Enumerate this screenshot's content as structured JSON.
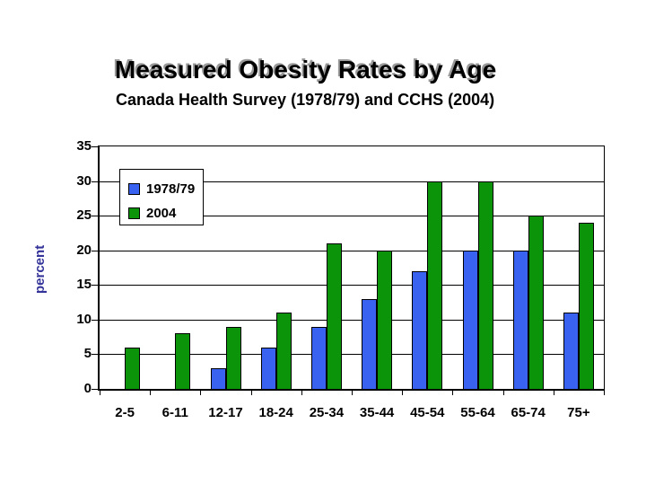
{
  "slide": {
    "title": "Measured Obesity Rates by Age",
    "subtitle": "Canada Health Survey (1978/79) and CCHS (2004)"
  },
  "chart_data": {
    "type": "bar",
    "title": "Measured Obesity Rates by Age",
    "subtitle": "Canada Health Survey (1978/79) and CCHS (2004)",
    "categories": [
      "2-5",
      "6-11",
      "12-17",
      "18-24",
      "25-34",
      "35-44",
      "45-54",
      "55-64",
      "65-74",
      "75+"
    ],
    "series": [
      {
        "name": "1978/79",
        "color": "#3A62F1",
        "values": [
          null,
          null,
          3,
          6,
          9,
          13,
          17,
          20,
          20,
          11
        ]
      },
      {
        "name": "2004",
        "color": "#0B9309",
        "values": [
          6,
          8,
          9,
          11,
          21,
          20,
          30,
          30,
          25,
          24
        ]
      }
    ],
    "xlabel": "",
    "ylabel": "percent",
    "ylabel_color": "#333399",
    "ylim": [
      0,
      35
    ],
    "ytick_interval": 5,
    "yticks": [
      0,
      5,
      10,
      15,
      20,
      25,
      30,
      35
    ],
    "grid": true,
    "legend_position": "upper-left-inside",
    "axis_color": "#000000",
    "background_color": "#ffffff"
  }
}
